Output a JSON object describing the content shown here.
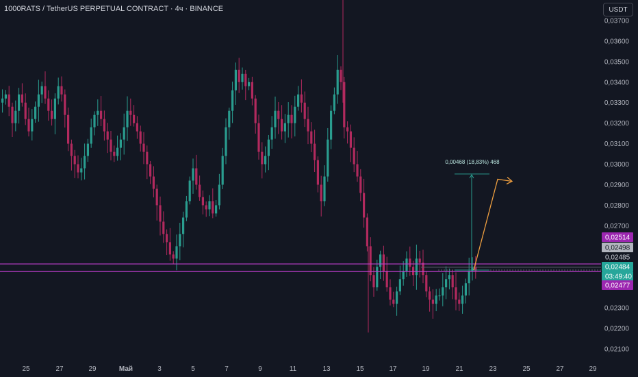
{
  "header": {
    "title": "1000RATS / TetherUS PERPETUAL CONTRACT · 4ч · BINANCE",
    "currency": "USDT"
  },
  "colors": {
    "background": "#131722",
    "up": "#26a69a",
    "down": "#ef5350",
    "down_display": "#b22a5e",
    "up_display": "#2a9d8f",
    "level_line": "#c03fd0",
    "projection": "#f0a040",
    "measure": "#2a9d8f"
  },
  "chart_data": {
    "type": "candlestick",
    "ylim": [
      0.0205,
      0.038
    ],
    "y_ticks": [
      "0,03700",
      "0,03600",
      "0,03500",
      "0,03400",
      "0,03300",
      "0,03200",
      "0,03100",
      "0,03000",
      "0,02900",
      "0,02800",
      "0,02700",
      "0,02300",
      "0,02200",
      "0,02100"
    ],
    "x_ticks": [
      "25",
      "27",
      "29",
      "Май",
      "3",
      "5",
      "7",
      "9",
      "11",
      "13",
      "15",
      "17",
      "19",
      "21",
      "23",
      "25",
      "27",
      "29"
    ],
    "price_labels": [
      {
        "text": "0,02514",
        "style": "purple"
      },
      {
        "text": "0,02498",
        "style": "gray"
      },
      {
        "text": "0,02485",
        "style": "plain"
      },
      {
        "text": "0,02484",
        "style": "green"
      },
      {
        "text": "03:49:40",
        "style": "green"
      },
      {
        "text": "0,02477",
        "style": "purple"
      }
    ],
    "horizontal_levels": [
      0.02514,
      0.02477
    ],
    "measure": {
      "label": "0,00468 (18,83%) 468",
      "from_price": 0.02484,
      "to_price": 0.02952
    },
    "projection_target": 0.0291,
    "close_series": [
      0.0332,
      0.0334,
      0.0328,
      0.032,
      0.0326,
      0.0334,
      0.033,
      0.0322,
      0.0316,
      0.0322,
      0.0328,
      0.0334,
      0.0338,
      0.0332,
      0.0326,
      0.0322,
      0.0332,
      0.0338,
      0.0334,
      0.0324,
      0.031,
      0.0304,
      0.03,
      0.0296,
      0.0298,
      0.0304,
      0.031,
      0.0318,
      0.0324,
      0.0326,
      0.0322,
      0.0316,
      0.0312,
      0.0306,
      0.0304,
      0.0308,
      0.0312,
      0.0318,
      0.0326,
      0.0324,
      0.032,
      0.0316,
      0.031,
      0.0306,
      0.03,
      0.0294,
      0.0288,
      0.028,
      0.0272,
      0.0266,
      0.0262,
      0.0256,
      0.0254,
      0.026,
      0.0266,
      0.0274,
      0.0282,
      0.0292,
      0.0298,
      0.029,
      0.0284,
      0.028,
      0.0278,
      0.0282,
      0.0276,
      0.028,
      0.029,
      0.0304,
      0.0318,
      0.0326,
      0.0336,
      0.0346,
      0.034,
      0.0344,
      0.0338,
      0.034,
      0.0332,
      0.032,
      0.0306,
      0.03,
      0.0304,
      0.0312,
      0.0318,
      0.0326,
      0.0322,
      0.0316,
      0.032,
      0.0324,
      0.032,
      0.0328,
      0.0334,
      0.033,
      0.0322,
      0.0316,
      0.031,
      0.0302,
      0.029,
      0.0282,
      0.0294,
      0.0312,
      0.0326,
      0.0334,
      0.0346,
      0.034,
      0.0318,
      0.0316,
      0.0308,
      0.03,
      0.0294,
      0.0286,
      0.0274,
      0.026,
      0.0246,
      0.024,
      0.025,
      0.0256,
      0.0248,
      0.024,
      0.0234,
      0.0232,
      0.0238,
      0.0244,
      0.0248,
      0.0254,
      0.025,
      0.0246,
      0.0254,
      0.0252,
      0.0246,
      0.0238,
      0.0234,
      0.0232,
      0.0236,
      0.0236,
      0.024,
      0.0244,
      0.0246,
      0.024,
      0.0234,
      0.0232,
      0.0236,
      0.0242,
      0.0248,
      0.025,
      0.0248
    ]
  }
}
